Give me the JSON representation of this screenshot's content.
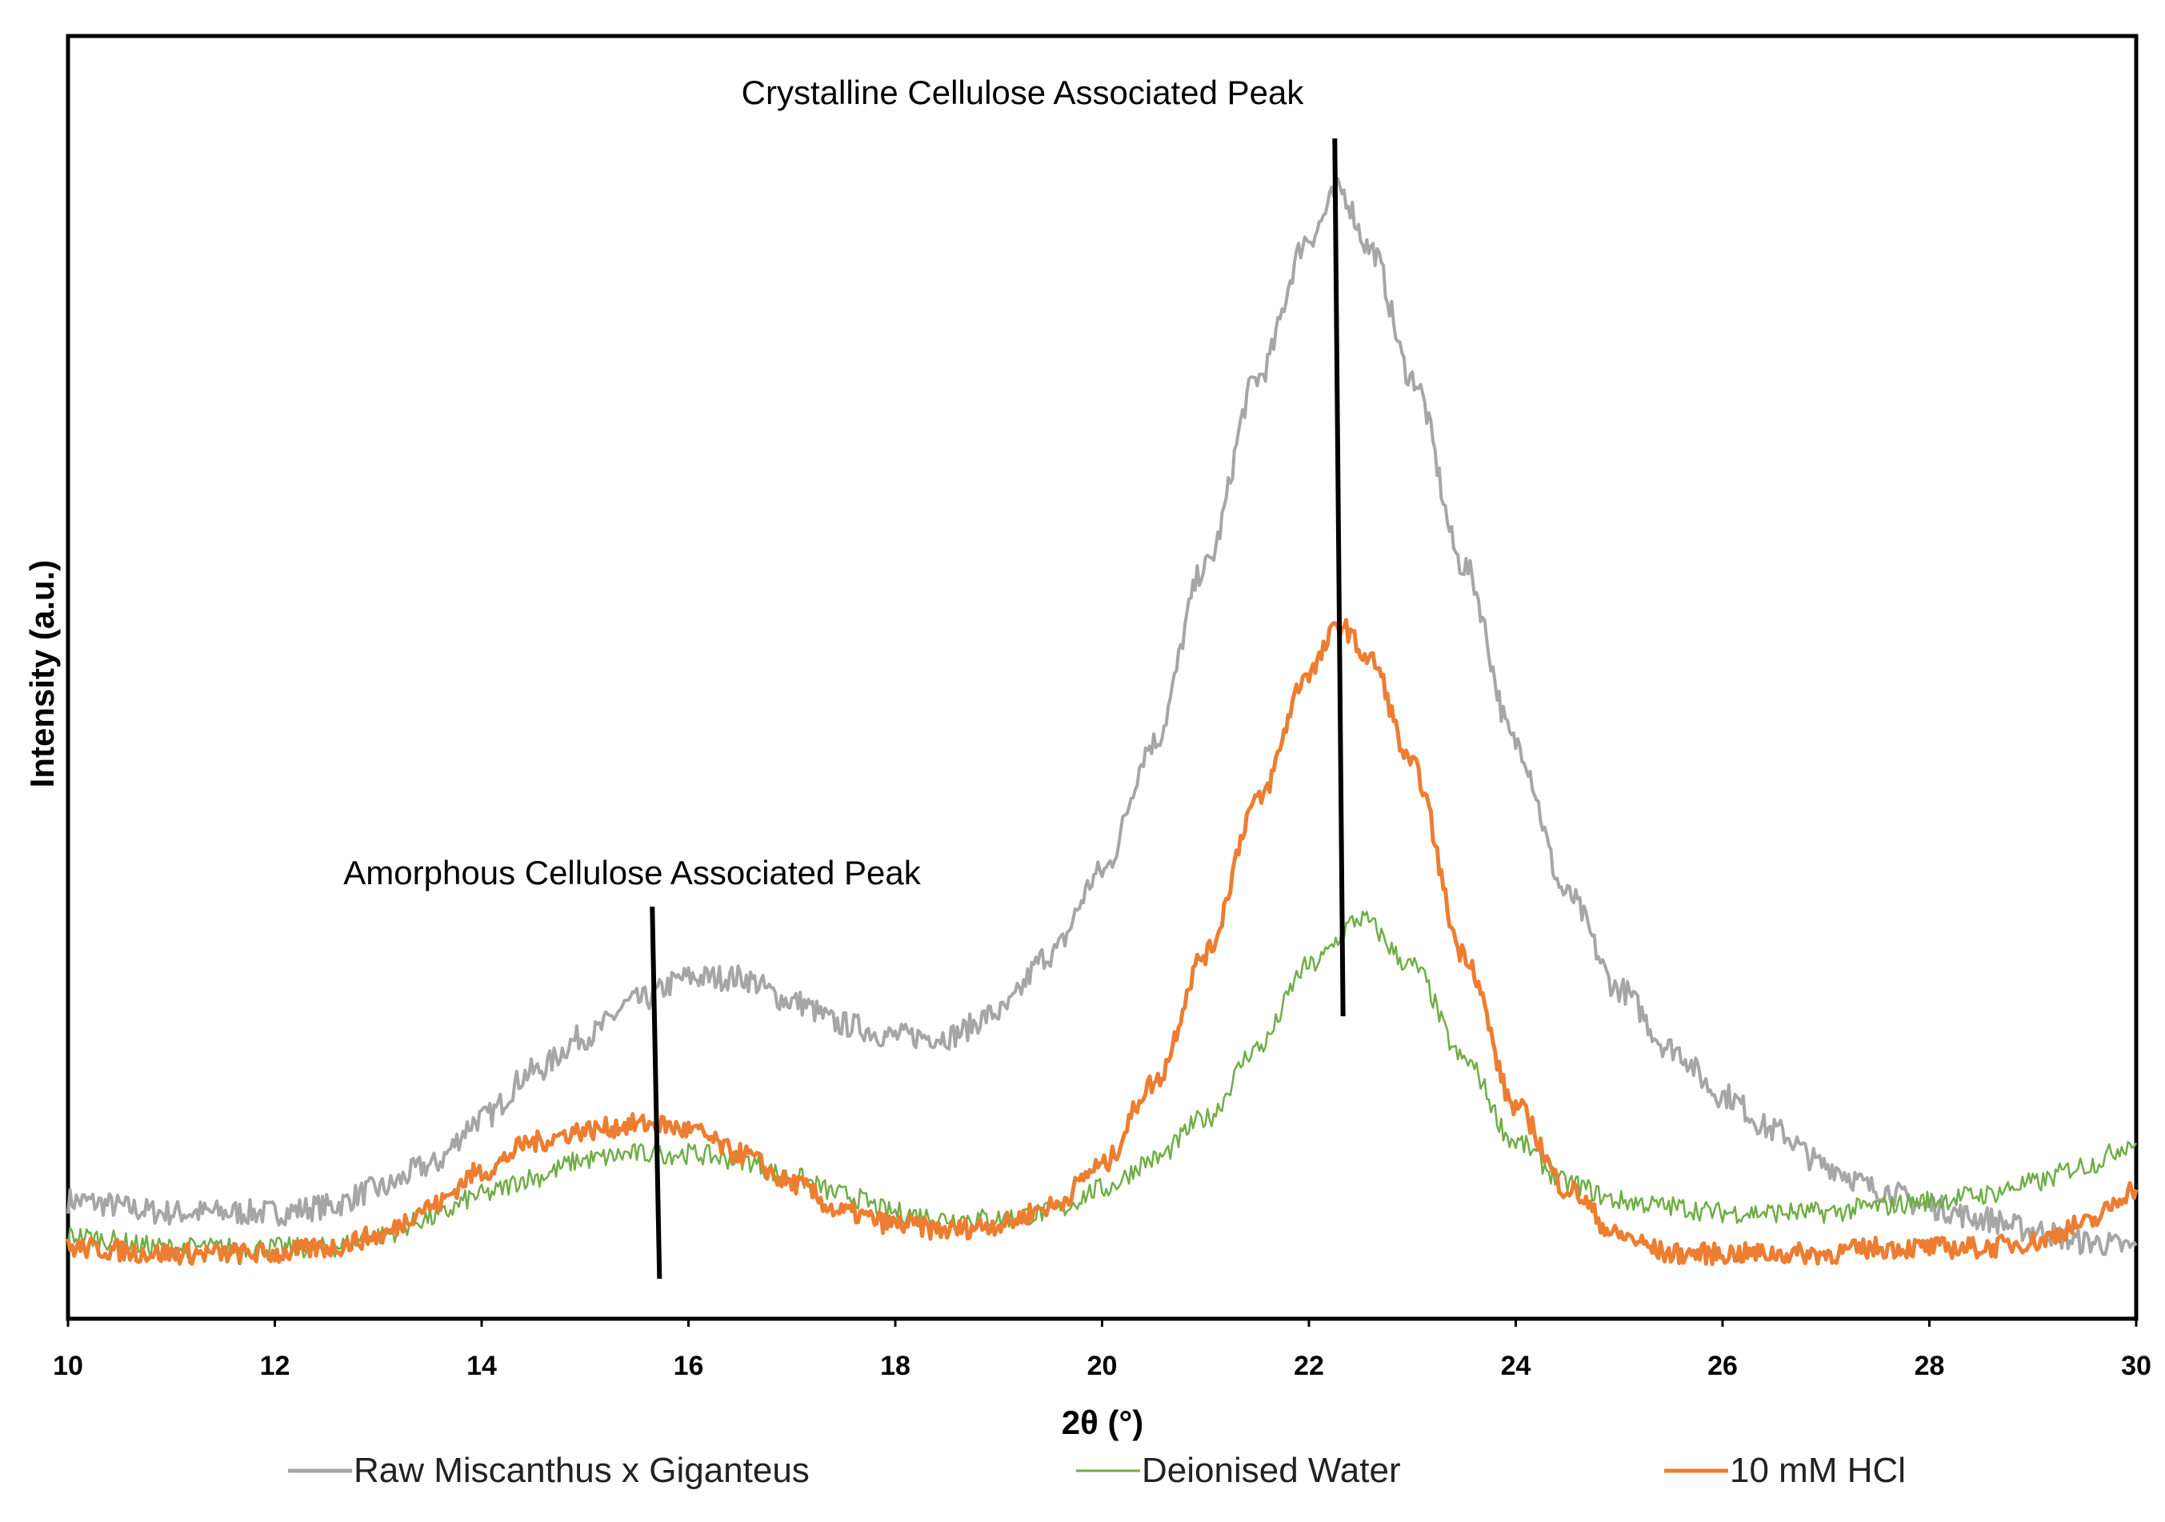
{
  "chart_data": {
    "type": "line",
    "title": "",
    "xlabel": "2θ (°)",
    "ylabel": "Intensity  (a.u.)",
    "xlim": [
      10,
      30
    ],
    "ylim": [
      0,
      100
    ],
    "x_ticks": [
      "10",
      "12",
      "14",
      "16",
      "18",
      "20",
      "22",
      "24",
      "26",
      "28",
      "30"
    ],
    "grid": false,
    "legend_position": "bottom",
    "annotations": [
      {
        "text": "Amorphous Cellulose Associated Peak",
        "x": 15.7
      },
      {
        "text": "Crystalline Cellulose Associated Peak",
        "x": 22.3
      }
    ],
    "series": [
      {
        "name": "Raw Miscanthus x Giganteus",
        "color": "#a6a6a6",
        "x": [
          10,
          11,
          12,
          12.5,
          13,
          13.5,
          14,
          14.5,
          15,
          15.5,
          16,
          16.5,
          17,
          17.5,
          18,
          18.5,
          19,
          19.5,
          20,
          20.5,
          21,
          21.5,
          22,
          22.3,
          22.6,
          23,
          23.5,
          24,
          24.5,
          25,
          25.5,
          26,
          26.5,
          27,
          27.5,
          28,
          28.5,
          29,
          29.5,
          30
        ],
        "values": [
          8,
          7,
          7,
          7.5,
          9,
          11,
          15,
          19,
          22,
          25,
          27,
          27,
          25,
          23,
          22,
          22,
          24,
          29,
          36,
          47,
          62,
          78,
          90,
          94,
          89,
          78,
          62,
          47,
          34,
          26,
          21,
          17,
          14,
          11,
          9,
          7.5,
          6.5,
          5.5,
          4.5,
          4
        ]
      },
      {
        "name": "Deionised Water",
        "color": "#70ad47",
        "x": [
          10,
          11,
          12,
          12.5,
          13,
          13.5,
          14,
          14.5,
          15,
          15.5,
          16,
          16.5,
          17,
          17.5,
          18,
          18.5,
          19,
          19.5,
          20,
          20.5,
          21,
          21.5,
          22,
          22.5,
          23,
          23.5,
          24,
          24.5,
          25,
          25.5,
          26,
          26.5,
          27,
          27.5,
          28,
          28.5,
          29,
          29.5,
          30
        ],
        "values": [
          5,
          4,
          4,
          4,
          5,
          6.5,
          8.5,
          10,
          11.5,
          12,
          12,
          11.5,
          10,
          8.5,
          7,
          6.5,
          6.5,
          7,
          9,
          11.5,
          15,
          21,
          28,
          32,
          28,
          20,
          13,
          9.5,
          8,
          7.5,
          7,
          7,
          7,
          7.5,
          8,
          8.5,
          9.5,
          11,
          13
        ]
      },
      {
        "name": "10 mM HCl",
        "color": "#ed7d31",
        "x": [
          10,
          11,
          12,
          12.5,
          13,
          13.5,
          14,
          14.5,
          15,
          15.5,
          15.7,
          16,
          16.5,
          17,
          17.5,
          18,
          18.5,
          19,
          19.5,
          20,
          20.5,
          21,
          21.5,
          22,
          22.3,
          22.6,
          23,
          23.5,
          24,
          24.5,
          25,
          25.5,
          26,
          26.5,
          27,
          27.5,
          28,
          28.5,
          29,
          29.5,
          30
        ],
        "values": [
          4,
          3.5,
          3.5,
          4,
          5,
          7.5,
          10.5,
          13,
          14,
          14.5,
          14.5,
          14,
          12,
          9.5,
          7,
          6,
          5.5,
          6,
          7.5,
          11,
          18,
          29,
          42,
          53,
          57,
          54,
          45,
          29,
          16,
          9,
          5,
          3.5,
          3.5,
          3.5,
          3.5,
          4,
          4,
          4,
          4.5,
          6,
          9
        ]
      }
    ]
  }
}
